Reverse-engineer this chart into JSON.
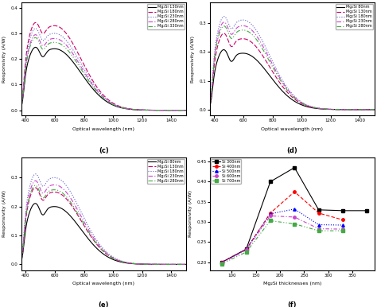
{
  "panel_c": {
    "title": "(c)",
    "xlabel": "Optical wavelength (nm)",
    "ylabel": "Responsivity (A/W)",
    "xlim": [
      370,
      1500
    ],
    "ylim": [
      -0.02,
      0.42
    ],
    "yticks": [
      0.0,
      0.1,
      0.2,
      0.3,
      0.4
    ],
    "xticks": [
      400,
      600,
      800,
      1000,
      1200,
      1400
    ],
    "curves": [
      {
        "label": "Mg₂Si 130nm",
        "color": "#000000",
        "ls": 0,
        "peak": 0.24,
        "shoulder": 0.07
      },
      {
        "label": "Mg₂Si 180nm",
        "color": "#cc0066",
        "ls": 1,
        "peak": 0.33,
        "shoulder": 0.1
      },
      {
        "label": "Mg₂Si 230nm",
        "color": "#6666cc",
        "ls": 2,
        "peak": 0.3,
        "shoulder": 0.1
      },
      {
        "label": "Mg₂Si 280nm",
        "color": "#cc44cc",
        "ls": 3,
        "peak": 0.28,
        "shoulder": 0.09
      },
      {
        "label": "Mg₂Si 330nm",
        "color": "#44aa44",
        "ls": 4,
        "peak": 0.265,
        "shoulder": 0.09
      }
    ]
  },
  "panel_d": {
    "title": "(d)",
    "xlabel": "Optical wavelength (nm)",
    "ylabel": "Responsivity (A/W)",
    "xlim": [
      370,
      1500
    ],
    "ylim": [
      -0.02,
      0.37
    ],
    "yticks": [
      0.0,
      0.1,
      0.2,
      0.3
    ],
    "xticks": [
      400,
      600,
      800,
      1000,
      1200,
      1400
    ],
    "curves": [
      {
        "label": "Mg₂Si 80nm",
        "color": "#000000",
        "ls": 0,
        "peak": 0.195,
        "shoulder": 0.065
      },
      {
        "label": "Mg₂Si 130nm",
        "color": "#cc0066",
        "ls": 1,
        "peak": 0.245,
        "shoulder": 0.085
      },
      {
        "label": "Mg₂Si 180nm",
        "color": "#6666cc",
        "ls": 2,
        "peak": 0.31,
        "shoulder": 0.095
      },
      {
        "label": "Mg₂Si 230nm",
        "color": "#cc44cc",
        "ls": 3,
        "peak": 0.29,
        "shoulder": 0.09
      },
      {
        "label": "Mg₂Si 280nm",
        "color": "#44aa44",
        "ls": 4,
        "peak": 0.275,
        "shoulder": 0.088
      }
    ]
  },
  "panel_e": {
    "title": "(e)",
    "xlabel": "Optical wavelength (nm)",
    "ylabel": "Responsivity (A/W)",
    "xlim": [
      370,
      1500
    ],
    "ylim": [
      -0.02,
      0.37
    ],
    "yticks": [
      0.0,
      0.1,
      0.2,
      0.3
    ],
    "xticks": [
      400,
      600,
      800,
      1000,
      1200,
      1400
    ],
    "curves": [
      {
        "label": "Mg₂Si 80nm",
        "color": "#000000",
        "ls": 0,
        "peak": 0.2,
        "shoulder": 0.065
      },
      {
        "label": "Mg₂Si 130nm",
        "color": "#cc0066",
        "ls": 1,
        "peak": 0.25,
        "shoulder": 0.083
      },
      {
        "label": "Mg₂Si 180nm",
        "color": "#6666cc",
        "ls": 2,
        "peak": 0.3,
        "shoulder": 0.093
      },
      {
        "label": "Mg₂Si 230nm",
        "color": "#cc44cc",
        "ls": 3,
        "peak": 0.275,
        "shoulder": 0.088
      },
      {
        "label": "Mg₂Si 280nm",
        "color": "#44aa44",
        "ls": 4,
        "peak": 0.258,
        "shoulder": 0.085
      }
    ]
  },
  "panel_f": {
    "title": "(f)",
    "xlabel": "Mg₂Si thicknesses (nm)",
    "ylabel": "Responsivity (A/W)",
    "xlim": [
      55,
      395
    ],
    "ylim": [
      0.18,
      0.46
    ],
    "yticks": [
      0.2,
      0.25,
      0.3,
      0.35,
      0.4,
      0.45
    ],
    "xticks": [
      100,
      150,
      200,
      250,
      300,
      350
    ],
    "curves": [
      {
        "label": "Si 300nm",
        "color": "#000000",
        "ls": 0,
        "marker": "s",
        "x": [
          80,
          130,
          180,
          230,
          280,
          330,
          380
        ],
        "y": [
          0.2,
          0.232,
          0.4,
          0.435,
          0.33,
          0.328,
          0.328
        ]
      },
      {
        "label": "Si 400nm",
        "color": "#ff0000",
        "ls": 1,
        "marker": "o",
        "x": [
          80,
          130,
          180,
          230,
          280,
          330
        ],
        "y": [
          0.2,
          0.232,
          0.322,
          0.375,
          0.322,
          0.305
        ]
      },
      {
        "label": "Si 500nm",
        "color": "#0000ff",
        "ls": 2,
        "marker": "^",
        "x": [
          80,
          130,
          180,
          230,
          280,
          330
        ],
        "y": [
          0.2,
          0.232,
          0.32,
          0.332,
          0.293,
          0.292
        ]
      },
      {
        "label": "Si 600nm",
        "color": "#cc44cc",
        "ls": 3,
        "marker": "o",
        "x": [
          80,
          130,
          180,
          230,
          280,
          330
        ],
        "y": [
          0.198,
          0.23,
          0.315,
          0.312,
          0.283,
          0.282
        ]
      },
      {
        "label": "Si 700nm",
        "color": "#44aa44",
        "ls": 4,
        "marker": "s",
        "x": [
          80,
          130,
          180,
          230,
          280,
          330
        ],
        "y": [
          0.196,
          0.225,
          0.303,
          0.295,
          0.278,
          0.278
        ]
      }
    ]
  }
}
